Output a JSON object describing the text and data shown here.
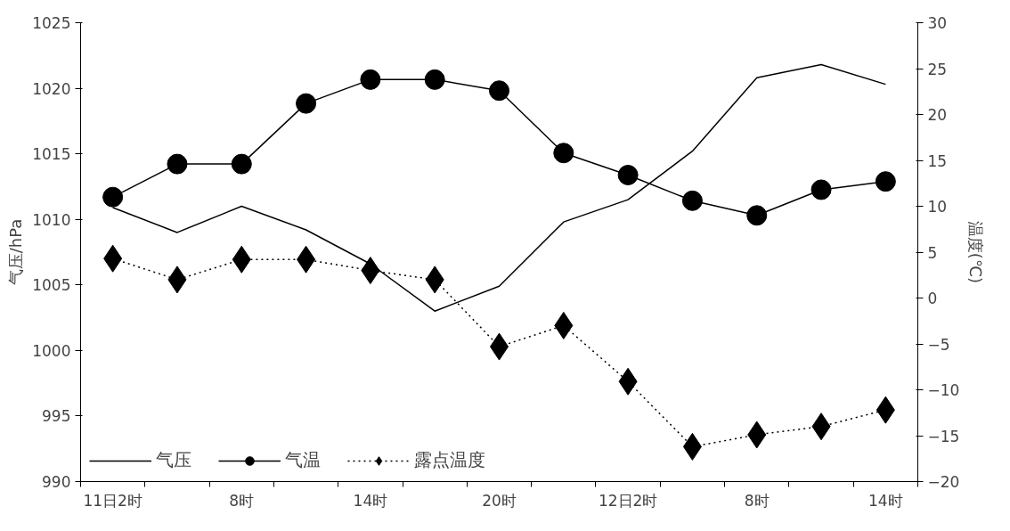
{
  "chart_data": {
    "type": "line",
    "categories": [
      "11日2时",
      null,
      "8时",
      null,
      "14时",
      null,
      "20时",
      null,
      "12日2时",
      null,
      "8时",
      null,
      "14时"
    ],
    "ylabel": "气压/hPa",
    "y2label": "温度(℃)",
    "ylim": [
      990,
      1025
    ],
    "yticks": [
      990,
      995,
      1000,
      1005,
      1010,
      1015,
      1020,
      1025
    ],
    "y2lim": [
      -20,
      30
    ],
    "y2ticks": [
      -20,
      -15,
      -10,
      -5,
      0,
      5,
      10,
      15,
      20,
      25,
      30
    ],
    "grid": false,
    "legend": "bottom left",
    "series": [
      {
        "name": "气压",
        "color": "#000000",
        "marker": "none",
        "line_style": "solid",
        "values": [
          1010.9,
          1009.0,
          1011.0,
          1009.2,
          1006.6,
          1003.0,
          1004.9,
          1009.8,
          1011.5,
          1015.2,
          1020.8,
          1021.8,
          1020.3
        ]
      },
      {
        "name": "气温",
        "color": "#000000",
        "marker": "circle",
        "line_style": "solid",
        "axis": "y2",
        "values": [
          11.0,
          14.6,
          14.6,
          21.2,
          23.8,
          23.8,
          22.6,
          15.8,
          13.4,
          10.6,
          9.0,
          11.8,
          12.7
        ]
      },
      {
        "name": "露点温度",
        "color": "#000000",
        "marker": "diamond",
        "line_style": "dotted",
        "axis": "y2",
        "values": [
          4.3,
          2.0,
          4.2,
          4.2,
          3.0,
          2.0,
          -5.3,
          -3.0,
          -9.1,
          -16.2,
          -14.9,
          -14.0,
          -12.2
        ]
      }
    ]
  }
}
